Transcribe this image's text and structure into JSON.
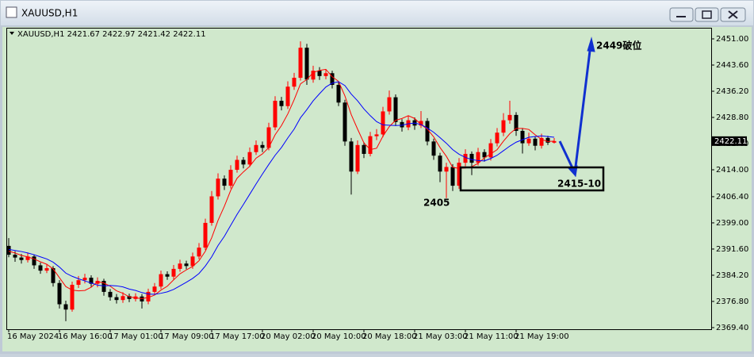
{
  "window": {
    "title": "XAUUSD,H1"
  },
  "chart_data": {
    "type": "candlestick",
    "subtitle": "XAUUSD,H1  2421.67 2422.97 2421.42 2422.11",
    "up_color": "#ff0000",
    "down_color": "#000000",
    "categories": [
      "16 May 2024",
      null,
      null,
      null,
      null,
      null,
      null,
      null,
      "16 May 16:00",
      null,
      null,
      null,
      null,
      null,
      null,
      null,
      "17 May 01:00",
      null,
      null,
      null,
      null,
      null,
      null,
      null,
      "17 May 09:00",
      null,
      null,
      null,
      null,
      null,
      null,
      null,
      "17 May 17:00",
      null,
      null,
      null,
      null,
      null,
      null,
      null,
      "20 May 02:00",
      null,
      null,
      null,
      null,
      null,
      null,
      null,
      "20 May 10:00",
      null,
      null,
      null,
      null,
      null,
      null,
      null,
      "20 May 18:00",
      null,
      null,
      null,
      null,
      null,
      null,
      null,
      "21 May 03:00",
      null,
      null,
      null,
      null,
      null,
      null,
      null,
      "21 May 11:00",
      null,
      null,
      null,
      null,
      null,
      null,
      null,
      "21 May 19:00",
      null,
      null,
      null,
      null,
      null,
      null
    ],
    "open": [
      2392.5,
      2390.0,
      2389.2,
      2388.5,
      2389.5,
      2387.0,
      2385.5,
      2386.2,
      2382.0,
      2376.0,
      2374.5,
      2381.5,
      2382.8,
      2383.5,
      2381.8,
      2382.6,
      2379.5,
      2378.0,
      2377.2,
      2378.3,
      2377.5,
      2378.2,
      2376.8,
      2379.5,
      2381.0,
      2384.5,
      2383.8,
      2386.0,
      2387.5,
      2386.8,
      2389.5,
      2392.0,
      2399.0,
      2406.5,
      2411.5,
      2409.5,
      2414.0,
      2416.8,
      2415.5,
      2419.0,
      2421.0,
      2420.2,
      2426.0,
      2433.5,
      2432.0,
      2437.5,
      2440.0,
      2448.5,
      2439.5,
      2442.0,
      2440.5,
      2441.3,
      2438.0,
      2433.0,
      2422.0,
      2413.5,
      2421.0,
      2418.5,
      2423.5,
      2424.0,
      2430.5,
      2434.5,
      2427.5,
      2426.0,
      2428.0,
      2426.5,
      2427.8,
      2422.0,
      2418.0,
      2413.5,
      2414.8,
      2409.5,
      2416.0,
      2418.5,
      2416.0,
      2419.0,
      2417.5,
      2421.5,
      2424.5,
      2428.0,
      2429.5,
      2425.0,
      2421.5,
      2422.8,
      2420.8,
      2423.0,
      2421.67
    ],
    "high": [
      2394.7,
      2391.0,
      2390.2,
      2390.6,
      2390.0,
      2387.8,
      2387.3,
      2386.8,
      2382.8,
      2377.0,
      2382.4,
      2384.0,
      2384.6,
      2384.2,
      2383.6,
      2383.2,
      2380.3,
      2378.9,
      2379.4,
      2379.0,
      2379.1,
      2378.9,
      2380.4,
      2382.0,
      2385.5,
      2385.3,
      2387.1,
      2388.6,
      2388.3,
      2390.6,
      2393.3,
      2400.2,
      2408.0,
      2413.0,
      2412.4,
      2415.3,
      2418.0,
      2417.6,
      2420.3,
      2422.3,
      2422.0,
      2427.3,
      2434.8,
      2434.6,
      2439.0,
      2441.4,
      2450.3,
      2449.6,
      2443.4,
      2443.0,
      2442.4,
      2442.0,
      2438.8,
      2433.8,
      2423.0,
      2422.3,
      2421.8,
      2424.7,
      2425.5,
      2431.8,
      2436.4,
      2435.3,
      2428.3,
      2429.3,
      2428.8,
      2430.6,
      2428.6,
      2422.8,
      2418.8,
      2416.0,
      2415.6,
      2417.3,
      2419.8,
      2419.2,
      2420.2,
      2419.8,
      2422.7,
      2425.8,
      2430.0,
      2433.5,
      2430.3,
      2425.8,
      2424.5,
      2423.5,
      2424.2,
      2423.6,
      2422.97
    ],
    "low": [
      2389.3,
      2388.0,
      2387.5,
      2387.8,
      2386.0,
      2384.6,
      2384.8,
      2381.0,
      2374.8,
      2371.2,
      2373.9,
      2380.6,
      2381.9,
      2380.9,
      2380.8,
      2378.4,
      2377.0,
      2376.2,
      2376.4,
      2376.6,
      2376.8,
      2374.8,
      2376.0,
      2378.8,
      2380.3,
      2382.9,
      2383.0,
      2385.2,
      2385.9,
      2386.0,
      2388.7,
      2391.3,
      2398.2,
      2405.6,
      2408.3,
      2408.7,
      2413.2,
      2414.4,
      2414.8,
      2418.2,
      2419.0,
      2419.5,
      2425.2,
      2430.8,
      2431.2,
      2436.6,
      2439.2,
      2438.0,
      2438.6,
      2439.4,
      2439.6,
      2437.0,
      2432.0,
      2420.8,
      2407.0,
      2412.8,
      2417.3,
      2417.8,
      2422.4,
      2423.2,
      2429.6,
      2426.4,
      2424.8,
      2425.2,
      2425.3,
      2425.8,
      2420.9,
      2416.8,
      2410.5,
      2406.0,
      2408.0,
      2408.6,
      2415.0,
      2412.5,
      2415.2,
      2416.3,
      2416.6,
      2420.6,
      2423.5,
      2427.0,
      2423.6,
      2418.6,
      2420.8,
      2419.5,
      2420.0,
      2421.0,
      2421.42
    ],
    "close": [
      2390.0,
      2389.2,
      2388.5,
      2389.5,
      2387.0,
      2385.5,
      2386.2,
      2382.0,
      2376.0,
      2374.5,
      2381.5,
      2382.8,
      2383.5,
      2381.8,
      2382.6,
      2379.5,
      2378.0,
      2377.2,
      2378.3,
      2377.5,
      2378.2,
      2376.8,
      2379.5,
      2381.0,
      2384.5,
      2383.8,
      2386.0,
      2387.5,
      2386.8,
      2389.5,
      2392.0,
      2399.0,
      2406.5,
      2411.5,
      2409.5,
      2414.0,
      2416.8,
      2415.5,
      2419.0,
      2421.0,
      2420.2,
      2426.0,
      2433.5,
      2432.0,
      2437.5,
      2440.0,
      2448.5,
      2439.5,
      2442.0,
      2440.5,
      2441.3,
      2438.0,
      2433.0,
      2422.0,
      2413.5,
      2421.0,
      2418.5,
      2423.5,
      2424.0,
      2430.5,
      2434.5,
      2427.5,
      2426.0,
      2428.0,
      2426.5,
      2427.8,
      2422.0,
      2418.0,
      2413.5,
      2414.8,
      2409.5,
      2416.0,
      2418.5,
      2416.0,
      2419.0,
      2417.5,
      2421.5,
      2424.5,
      2428.0,
      2429.5,
      2425.0,
      2421.5,
      2422.8,
      2420.8,
      2423.0,
      2421.67,
      2422.11
    ],
    "ma_lines": [
      {
        "color": "#ff0000",
        "values": [
          2391,
          2390.5,
          2389.8,
          2389.4,
          2388.8,
          2388,
          2387.3,
          2386,
          2383.5,
          2381,
          2380,
          2379.8,
          2379.9,
          2380.8,
          2382.4,
          2382,
          2381.1,
          2379.8,
          2379.1,
          2378.1,
          2377.8,
          2377.6,
          2377.9,
          2378.6,
          2380,
          2381.1,
          2382.9,
          2384.6,
          2385.7,
          2386.7,
          2388.3,
          2391,
          2394.8,
          2399.7,
          2403.7,
          2408.2,
          2411.6,
          2413.4,
          2415,
          2417.3,
          2418.5,
          2420.3,
          2423.9,
          2426.5,
          2429.8,
          2433.8,
          2438.3,
          2439.5,
          2441.5,
          2442.1,
          2442.4,
          2440.3,
          2439,
          2434.9,
          2429.6,
          2425.5,
          2421.6,
          2419.7,
          2420.1,
          2423.5,
          2426.2,
          2428,
          2428.5,
          2429.3,
          2428.5,
          2426.8,
          2425.5,
          2423.3,
          2420.3,
          2417.8,
          2414.7,
          2414.4,
          2414.5,
          2414.9,
          2415.8,
          2417.4,
          2418.5,
          2419.7,
          2422.1,
          2424.2,
          2425.7,
          2425.7,
          2425.4,
          2423.9,
          2422.6,
          2422,
          2422.1
        ]
      },
      {
        "color": "#0000ff",
        "values": [
          2391.5,
          2391.2,
          2390.9,
          2390.5,
          2390,
          2389.4,
          2388.8,
          2387.9,
          2386.5,
          2384.8,
          2383.9,
          2383.2,
          2382.6,
          2382,
          2381.4,
          2381.2,
          2381.3,
          2381.2,
          2380.9,
          2380.3,
          2379.9,
          2379.3,
          2378.9,
          2378.8,
          2379.1,
          2379.5,
          2380.2,
          2381.2,
          2382.2,
          2383.3,
          2384.7,
          2386.8,
          2389.4,
          2392.6,
          2395.2,
          2398.3,
          2401.4,
          2404.2,
          2407.1,
          2410,
          2412.8,
          2415.5,
          2418.1,
          2420.3,
          2423,
          2425.5,
          2428.7,
          2431,
          2433.5,
          2435.5,
          2437.4,
          2438.5,
          2438.9,
          2437.8,
          2435.4,
          2433.5,
          2431.2,
          2429.3,
          2427.6,
          2426.7,
          2426.6,
          2426.5,
          2426.6,
          2427,
          2427.2,
          2426.8,
          2425.8,
          2424.6,
          2423.1,
          2421.5,
          2419.7,
          2418.4,
          2417.5,
          2416.9,
          2416.6,
          2416.5,
          2417.2,
          2418.1,
          2419.4,
          2420.7,
          2421.8,
          2422.5,
          2423.2,
          2423.4,
          2423.6,
          2423.4,
          2423.2
        ]
      }
    ],
    "last_price": 2422.11,
    "ylim": [
      2368.94,
      2454.14
    ],
    "yticks": [
      {
        "value": 2451,
        "label": "2451.00"
      },
      {
        "value": 2443.6,
        "label": "2443.60"
      },
      {
        "value": 2436.2,
        "label": "2436.20"
      },
      {
        "value": 2428.8,
        "label": "2428.80"
      },
      {
        "value": 2421.4,
        "label": "2421.40"
      },
      {
        "value": 2414,
        "label": "2414.00"
      },
      {
        "value": 2406.4,
        "label": "2406.40"
      },
      {
        "value": 2399,
        "label": "2399.00"
      },
      {
        "value": 2391.6,
        "label": "2391.60"
      },
      {
        "value": 2384.2,
        "label": "2384.20"
      },
      {
        "value": 2376.8,
        "label": "2376.80"
      },
      {
        "value": 2369.4,
        "label": "2369.40"
      }
    ],
    "annotations": [
      "2449破位",
      "2405",
      "2415-10"
    ]
  }
}
